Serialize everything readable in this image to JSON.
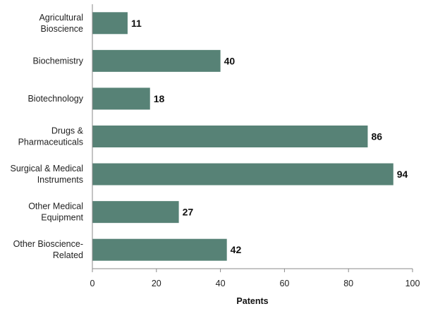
{
  "chart_data": {
    "type": "bar",
    "orientation": "horizontal",
    "categories": [
      [
        "Agricultural",
        "Bioscience"
      ],
      [
        "Biochemistry"
      ],
      [
        "Biotechnology"
      ],
      [
        "Drugs &",
        "Pharmaceuticals"
      ],
      [
        "Surgical & Medical",
        "Instruments"
      ],
      [
        "Other Medical",
        "Equipment"
      ],
      [
        "Other Bioscience-",
        "Related"
      ]
    ],
    "values": [
      11,
      40,
      18,
      86,
      94,
      27,
      42
    ],
    "value_labels": [
      "11",
      "40",
      "18",
      "86",
      "94",
      "27",
      "42"
    ],
    "xlabel": "Patents",
    "xlim": [
      0,
      100
    ],
    "xticks": [
      0,
      20,
      40,
      60,
      80,
      100
    ],
    "xtick_labels": [
      "0",
      "20",
      "40",
      "60",
      "80",
      "100"
    ],
    "bar_color": "#578276",
    "grid": false,
    "legend": "none"
  }
}
